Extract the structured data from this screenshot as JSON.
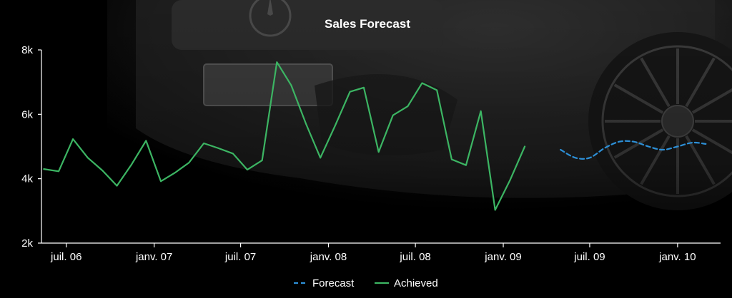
{
  "chart_data": {
    "type": "line",
    "title": "Sales Forecast",
    "xlabel": "",
    "ylabel": "",
    "x_range": [
      "2006-05-10",
      "2010-04-01"
    ],
    "ylim": [
      2000,
      8000
    ],
    "y_ticks": [
      {
        "value": 2000,
        "label": "2k"
      },
      {
        "value": 4000,
        "label": "4k"
      },
      {
        "value": 6000,
        "label": "6k"
      },
      {
        "value": 8000,
        "label": "8k"
      }
    ],
    "x_ticks": [
      {
        "date": "2006-07-01",
        "label": "juil. 06"
      },
      {
        "date": "2007-01-01",
        "label": "janv. 07"
      },
      {
        "date": "2007-07-01",
        "label": "juil. 07"
      },
      {
        "date": "2008-01-01",
        "label": "janv. 08"
      },
      {
        "date": "2008-07-01",
        "label": "juil. 08"
      },
      {
        "date": "2009-01-01",
        "label": "janv. 09"
      },
      {
        "date": "2009-07-01",
        "label": "juil. 09"
      },
      {
        "date": "2010-01-01",
        "label": "janv. 10"
      }
    ],
    "grid": false,
    "legend": "bottom-center",
    "series": [
      {
        "name": "Forecast",
        "color": "#2d8fd6",
        "style": "dashed",
        "points": [
          {
            "x": "2009-05-01",
            "y": 4900
          },
          {
            "x": "2009-06-01",
            "y": 4650
          },
          {
            "x": "2009-07-01",
            "y": 4650
          },
          {
            "x": "2009-08-01",
            "y": 4950
          },
          {
            "x": "2009-09-01",
            "y": 5150
          },
          {
            "x": "2009-10-01",
            "y": 5150
          },
          {
            "x": "2009-11-01",
            "y": 5000
          },
          {
            "x": "2009-12-01",
            "y": 4900
          },
          {
            "x": "2010-01-01",
            "y": 5000
          },
          {
            "x": "2010-02-01",
            "y": 5120
          },
          {
            "x": "2010-03-01",
            "y": 5080
          }
        ]
      },
      {
        "name": "Achieved",
        "color": "#3cb563",
        "style": "solid",
        "points": [
          {
            "x": "2006-05-15",
            "y": 4300
          },
          {
            "x": "2006-06-15",
            "y": 4230
          },
          {
            "x": "2006-07-15",
            "y": 5230
          },
          {
            "x": "2006-08-15",
            "y": 4650
          },
          {
            "x": "2006-09-15",
            "y": 4250
          },
          {
            "x": "2006-10-15",
            "y": 3780
          },
          {
            "x": "2006-11-15",
            "y": 4450
          },
          {
            "x": "2006-12-15",
            "y": 5180
          },
          {
            "x": "2007-01-15",
            "y": 3920
          },
          {
            "x": "2007-02-15",
            "y": 4200
          },
          {
            "x": "2007-03-15",
            "y": 4500
          },
          {
            "x": "2007-04-15",
            "y": 5100
          },
          {
            "x": "2007-05-15",
            "y": 4950
          },
          {
            "x": "2007-06-15",
            "y": 4780
          },
          {
            "x": "2007-07-15",
            "y": 4280
          },
          {
            "x": "2007-08-15",
            "y": 4570
          },
          {
            "x": "2007-09-15",
            "y": 7620
          },
          {
            "x": "2007-10-15",
            "y": 6900
          },
          {
            "x": "2007-11-15",
            "y": 5700
          },
          {
            "x": "2007-12-15",
            "y": 4650
          },
          {
            "x": "2008-01-15",
            "y": 5650
          },
          {
            "x": "2008-02-15",
            "y": 6700
          },
          {
            "x": "2008-03-15",
            "y": 6830
          },
          {
            "x": "2008-04-15",
            "y": 4830
          },
          {
            "x": "2008-05-15",
            "y": 5970
          },
          {
            "x": "2008-06-15",
            "y": 6250
          },
          {
            "x": "2008-07-15",
            "y": 6970
          },
          {
            "x": "2008-08-15",
            "y": 6750
          },
          {
            "x": "2008-09-15",
            "y": 4600
          },
          {
            "x": "2008-10-15",
            "y": 4420
          },
          {
            "x": "2008-11-15",
            "y": 6100
          },
          {
            "x": "2008-12-15",
            "y": 3030
          },
          {
            "x": "2009-01-15",
            "y": 3950
          },
          {
            "x": "2009-02-15",
            "y": 5000
          }
        ]
      }
    ]
  }
}
